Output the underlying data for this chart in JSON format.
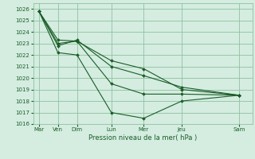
{
  "background_color": "#d4ede0",
  "grid_color": "#90c0a0",
  "line_color": "#1a5c28",
  "marker_color": "#1a5c28",
  "xlabel": "Pression niveau de la mer( hPa )",
  "ylim": [
    1016,
    1026.5
  ],
  "yticks": [
    1016,
    1017,
    1018,
    1019,
    1020,
    1021,
    1022,
    1023,
    1024,
    1025,
    1026
  ],
  "xtick_labels": [
    "Mar",
    "Ven",
    "Dim",
    "Lun",
    "Mer",
    "Jeu",
    "Sam"
  ],
  "xtick_positions": [
    0,
    1.5,
    3,
    4.5,
    6,
    7.5,
    10.5
  ],
  "xlim": [
    -0.2,
    11.2
  ],
  "series": [
    [
      1025.8,
      1023.3,
      1023.2,
      1019.5,
      1018.6,
      1018.6,
      1018.5
    ],
    [
      1025.8,
      1022.2,
      1022.0,
      1017.0,
      1016.5,
      1018.0,
      1018.5
    ],
    [
      1025.8,
      1022.8,
      1023.3,
      1021.0,
      1020.2,
      1019.2,
      1018.5
    ],
    [
      1025.8,
      1023.0,
      1023.2,
      1021.5,
      1020.8,
      1019.0,
      1018.5
    ]
  ],
  "x_per_series": [
    [
      0,
      1.5,
      3,
      4.5,
      6,
      7.5,
      10.5
    ],
    [
      0,
      1.5,
      3,
      4.5,
      6,
      7.5,
      10.5
    ],
    [
      0,
      1.5,
      3,
      4.5,
      6,
      7.5,
      10.5
    ],
    [
      0,
      1.5,
      3,
      4.5,
      6,
      7.5,
      10.5
    ]
  ]
}
